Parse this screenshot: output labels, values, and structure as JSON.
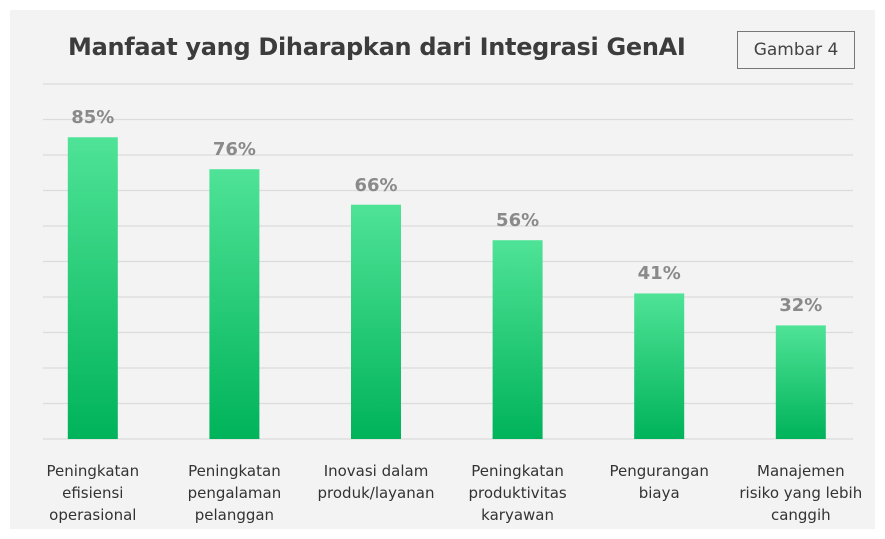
{
  "chart_data": {
    "type": "bar",
    "title": "Manfaat yang Diharapkan dari Integrasi GenAI",
    "badge": "Gambar 4",
    "categories": [
      "Peningkatan\nefisiensi\noperasional",
      "Peningkatan\npengalaman\npelanggan",
      "Inovasi dalam\nproduk/layanan",
      "Peningkatan\nproduktivitas\nkaryawan",
      "Pengurangan\nbiaya",
      "Manajemen\nrisiko yang lebih\ncanggih"
    ],
    "values": [
      85,
      76,
      66,
      56,
      41,
      32
    ],
    "value_labels": [
      "85%",
      "76%",
      "66%",
      "56%",
      "41%",
      "32%"
    ],
    "color": [
      "#4fe397",
      "#00b35a"
    ],
    "ylim": [
      0,
      100
    ],
    "yticks": [
      0,
      10,
      20,
      30,
      40,
      50,
      60,
      70,
      80,
      90,
      100
    ],
    "grid": true
  }
}
